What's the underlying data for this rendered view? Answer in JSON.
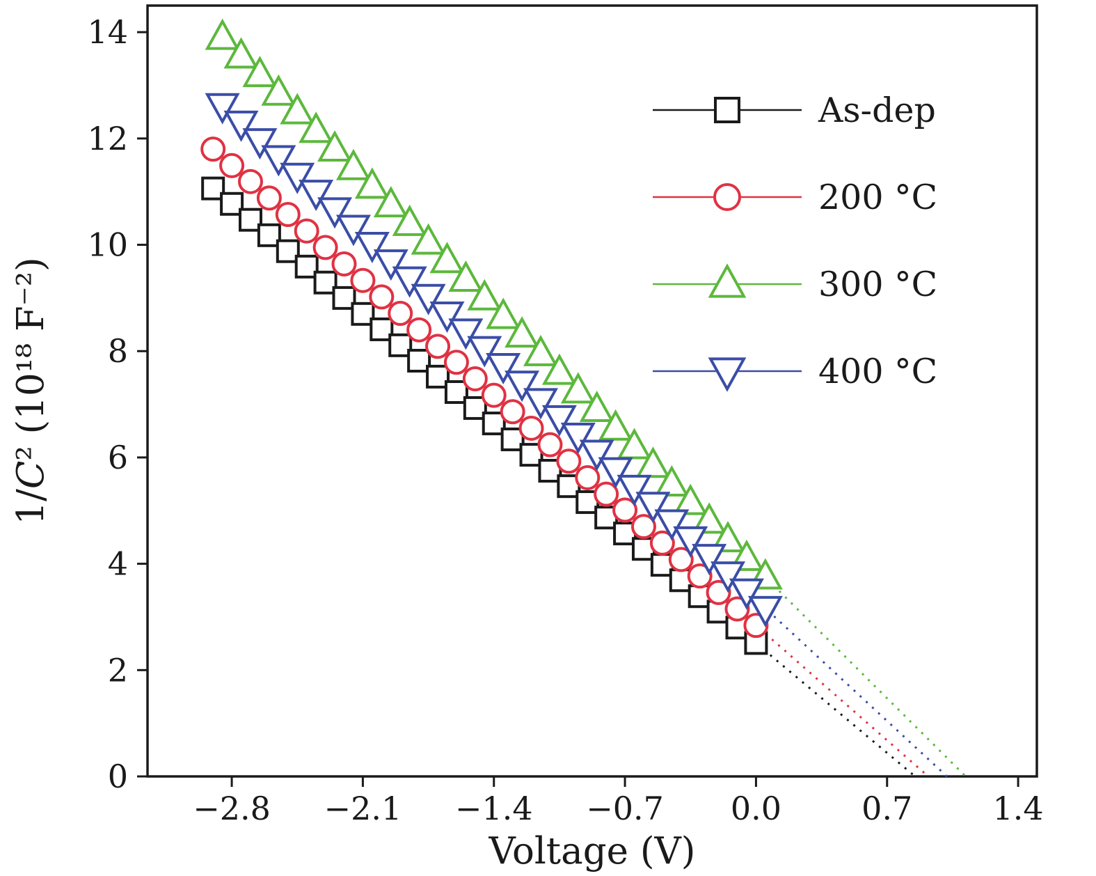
{
  "figure": {
    "background": "#ffffff",
    "frame_color": "#1a1a1a"
  },
  "chart_data": {
    "type": "scatter",
    "title": "",
    "xlabel": "Voltage (V)",
    "ylabel": "1/C² (10¹⁸ F⁻²)",
    "xlim": [
      -3.25,
      1.5
    ],
    "ylim": [
      0,
      14.5
    ],
    "grid": false,
    "legend_position": "upper right",
    "x_ticks": [
      -2.8,
      -2.1,
      -1.4,
      -0.7,
      0.0,
      0.7,
      1.4
    ],
    "x_tick_labels": [
      "−2.8",
      "−2.1",
      "−1.4",
      "−0.7",
      "0.0",
      "0.7",
      "1.4"
    ],
    "y_ticks": [
      0,
      2,
      4,
      6,
      8,
      10,
      12,
      14
    ],
    "y_tick_labels": [
      "0",
      "2",
      "4",
      "6",
      "8",
      "10",
      "12",
      "14"
    ],
    "series": [
      {
        "name": "As-dep",
        "color": "#1a1a1a",
        "marker": "square",
        "marker_size": 30,
        "fit_line_style": "dotted",
        "fit_x_intercept": 0.85,
        "x": [
          -2.9,
          -2.8,
          -2.7,
          -2.6,
          -2.5,
          -2.4,
          -2.3,
          -2.2,
          -2.1,
          -2.0,
          -1.9,
          -1.8,
          -1.7,
          -1.6,
          -1.5,
          -1.4,
          -1.3,
          -1.2,
          -1.1,
          -1.0,
          -0.9,
          -0.8,
          -0.7,
          -0.6,
          -0.5,
          -0.4,
          -0.3,
          -0.2,
          -0.1,
          0.0
        ],
        "y": [
          11.06,
          10.77,
          10.47,
          10.18,
          9.88,
          9.59,
          9.29,
          9.0,
          8.7,
          8.41,
          8.11,
          7.82,
          7.52,
          7.23,
          6.93,
          6.64,
          6.34,
          6.05,
          5.75,
          5.46,
          5.16,
          4.87,
          4.57,
          4.28,
          3.98,
          3.69,
          3.39,
          3.1,
          2.8,
          2.51
        ]
      },
      {
        "name": "200 °C",
        "color": "#e03243",
        "marker": "circle",
        "marker_size": 32,
        "fit_line_style": "dotted",
        "fit_x_intercept": 0.92,
        "x": [
          -2.9,
          -2.8,
          -2.7,
          -2.6,
          -2.5,
          -2.4,
          -2.3,
          -2.2,
          -2.1,
          -2.0,
          -1.9,
          -1.8,
          -1.7,
          -1.6,
          -1.5,
          -1.4,
          -1.3,
          -1.2,
          -1.1,
          -1.0,
          -0.9,
          -0.8,
          -0.7,
          -0.6,
          -0.5,
          -0.4,
          -0.3,
          -0.2,
          -0.1,
          0.0
        ],
        "y": [
          11.8,
          11.49,
          11.19,
          10.88,
          10.57,
          10.26,
          9.95,
          9.64,
          9.33,
          9.02,
          8.71,
          8.4,
          8.09,
          7.79,
          7.48,
          7.17,
          6.86,
          6.55,
          6.24,
          5.93,
          5.62,
          5.31,
          5.01,
          4.7,
          4.39,
          4.08,
          3.77,
          3.46,
          3.15,
          2.84
        ]
      },
      {
        "name": "300 °C",
        "color": "#5cb83c",
        "marker": "triangle-up",
        "marker_size": 36,
        "fit_line_style": "dotted",
        "fit_x_intercept": 1.12,
        "x": [
          -2.85,
          -2.75,
          -2.65,
          -2.55,
          -2.45,
          -2.35,
          -2.25,
          -2.15,
          -2.05,
          -1.95,
          -1.85,
          -1.75,
          -1.65,
          -1.55,
          -1.45,
          -1.35,
          -1.25,
          -1.15,
          -1.05,
          -0.95,
          -0.85,
          -0.75,
          -0.65,
          -0.55,
          -0.45,
          -0.35,
          -0.25,
          -0.15,
          -0.05,
          0.05
        ],
        "y": [
          13.9,
          13.55,
          13.2,
          12.85,
          12.5,
          12.15,
          11.8,
          11.45,
          11.1,
          10.75,
          10.4,
          10.05,
          9.7,
          9.35,
          9.0,
          8.65,
          8.3,
          7.95,
          7.6,
          7.25,
          6.9,
          6.55,
          6.2,
          5.85,
          5.5,
          5.15,
          4.8,
          4.45,
          4.1,
          3.75
        ]
      },
      {
        "name": "400 °C",
        "color": "#3a4da6",
        "marker": "triangle-down",
        "marker_size": 36,
        "fit_line_style": "dotted",
        "fit_x_intercept": 1.02,
        "x": [
          -2.85,
          -2.75,
          -2.65,
          -2.55,
          -2.45,
          -2.35,
          -2.25,
          -2.15,
          -2.05,
          -1.95,
          -1.85,
          -1.75,
          -1.65,
          -1.55,
          -1.45,
          -1.35,
          -1.25,
          -1.15,
          -1.05,
          -0.95,
          -0.85,
          -0.75,
          -0.65,
          -0.55,
          -0.45,
          -0.35,
          -0.25,
          -0.15,
          -0.05,
          0.05
        ],
        "y": [
          12.62,
          12.29,
          11.96,
          11.64,
          11.31,
          10.99,
          10.66,
          10.33,
          10.01,
          9.68,
          9.36,
          9.03,
          8.7,
          8.38,
          8.05,
          7.73,
          7.4,
          7.07,
          6.75,
          6.42,
          6.1,
          5.77,
          5.44,
          5.12,
          4.79,
          4.47,
          4.14,
          3.81,
          3.49,
          3.16
        ]
      }
    ]
  }
}
